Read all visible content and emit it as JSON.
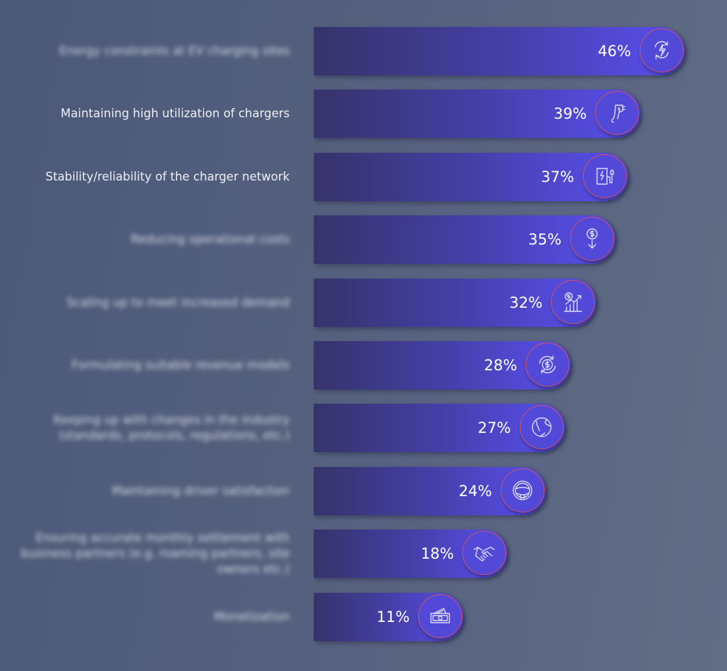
{
  "chart_data": {
    "type": "bar",
    "orientation": "horizontal",
    "title": "",
    "xlabel": "",
    "ylabel": "",
    "value_suffix": "%",
    "categories": [
      "Energy constraints at EV charging sites",
      "Maintaining high utilization of chargers",
      "Stability/reliability of the charger network",
      "Reducing operational costs",
      "Scaling up to meet increased demand",
      "Formulating suitable revenue models",
      "Keeping up with changes in the industry (standards, protocols, regulations, etc.)",
      "Maintaining driver satisfaction",
      "Ensuring accurate monthly settlement with business partners (e.g. roaming partners, site owners etc.)",
      "Monetization"
    ],
    "values": [
      46,
      39,
      37,
      35,
      32,
      28,
      27,
      24,
      18,
      11
    ],
    "value_labels": [
      "46%",
      "39%",
      "37%",
      "35%",
      "32%",
      "28%",
      "27%",
      "24%",
      "18%",
      "11%"
    ],
    "icons": [
      "energy-cycle-icon",
      "charging-gun-icon",
      "charging-station-icon",
      "cost-down-icon",
      "growth-chart-icon",
      "revenue-cycle-icon",
      "globe-icon",
      "steering-wheel-icon",
      "handshake-icon",
      "money-icon"
    ],
    "blurred": [
      true,
      false,
      false,
      true,
      true,
      true,
      true,
      true,
      true,
      true
    ],
    "xlim": [
      0,
      46
    ]
  },
  "colors": {
    "bar_start": "#36336a",
    "bar_end": "#5a4ef0",
    "ring": "#d0566a"
  }
}
